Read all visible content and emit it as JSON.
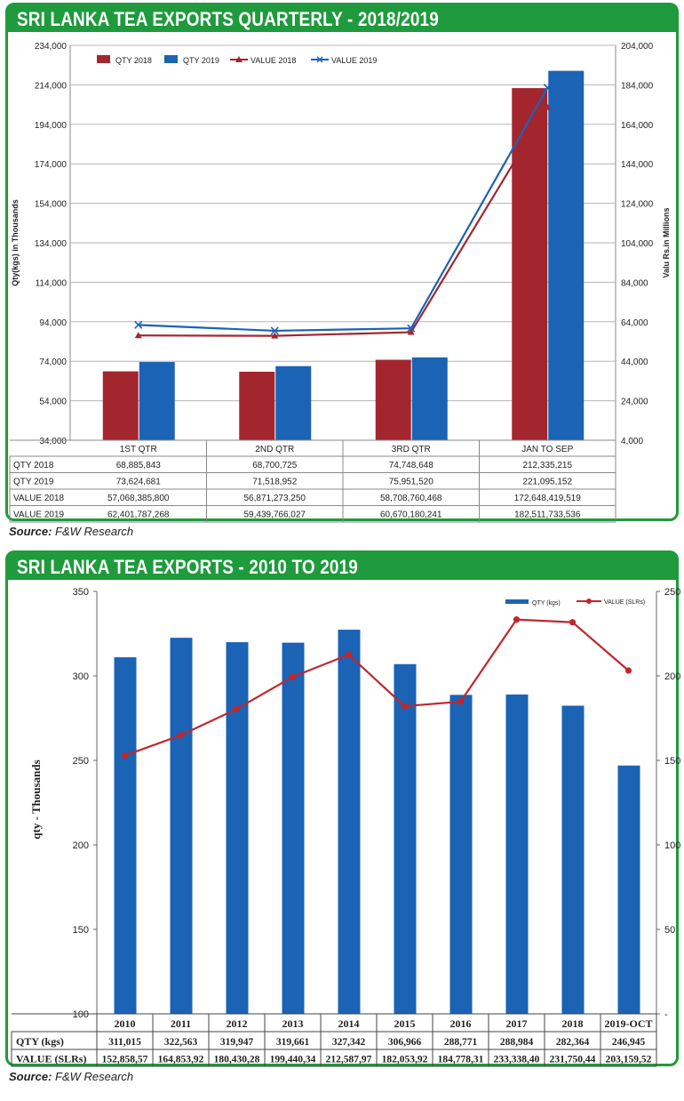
{
  "colors": {
    "red": "#a3262f",
    "blue": "#1b63b4",
    "green": "#1f9a3c"
  },
  "source": {
    "label": "Source:",
    "text": "F&W Research"
  },
  "chart_data": [
    {
      "type": "bar",
      "title": "SRI LANKA TEA EXPORTS QUARTERLY - 2018/2019",
      "categories": [
        "1ST QTR",
        "2ND QTR",
        "3RD QTR",
        "JAN TO SEP"
      ],
      "ylabel": "Qty(kgs) in Thousands",
      "y2label": "Valu Rs.in Millions",
      "ylim": [
        34000,
        234000
      ],
      "y2lim": [
        4000,
        204000
      ],
      "yticks": [
        "234,000",
        "214,000",
        "194,000",
        "174,000",
        "154,000",
        "134,000",
        "114,000",
        "94,000",
        "74,000",
        "54,000",
        "34,000"
      ],
      "y2ticks": [
        "204,000",
        "184,000",
        "164,000",
        "144,000",
        "124,000",
        "104,000",
        "84,000",
        "64,000",
        "44,000",
        "24,000",
        "4,000"
      ],
      "grid": true,
      "legend_position": "top-left",
      "series": [
        {
          "name": "QTY 2018",
          "kind": "bar",
          "axis": "left",
          "values": [
            68885.843,
            68700.725,
            74748.648,
            212335.215
          ]
        },
        {
          "name": "QTY 2019",
          "kind": "bar",
          "axis": "left",
          "values": [
            73624.681,
            71518.952,
            75951.52,
            221095.152
          ]
        },
        {
          "name": "VALUE 2018",
          "kind": "line",
          "axis": "right",
          "values": [
            57068.3858,
            56871.27325,
            58708.760468,
            172648.419519
          ]
        },
        {
          "name": "VALUE 2019",
          "kind": "line",
          "axis": "right",
          "values": [
            62401.787268,
            59439.766027,
            60670.180241,
            182511.733536
          ]
        }
      ],
      "table": {
        "rows": [
          {
            "label": "QTY 2018",
            "cells": [
              "68,885,843",
              "68,700,725",
              "74,748,648",
              "212,335,215"
            ]
          },
          {
            "label": "QTY 2019",
            "cells": [
              "73,624,681",
              "71,518,952",
              "75,951,520",
              "221,095,152"
            ]
          },
          {
            "label": "VALUE 2018",
            "cells": [
              "57,068,385,800",
              "56,871,273,250",
              "58,708,760,468",
              "172,648,419,519"
            ]
          },
          {
            "label": "VALUE 2019",
            "cells": [
              "62,401,787,268",
              "59,439,766,027",
              "60,670,180,241",
              "182,511,733,536"
            ]
          }
        ]
      }
    },
    {
      "type": "bar",
      "title": "SRI LANKA TEA EXPORTS - 2010 TO 2019",
      "categories": [
        "2010",
        "2011",
        "2012",
        "2013",
        "2014",
        "2015",
        "2016",
        "2017",
        "2018",
        "2019-OCT"
      ],
      "ylabel": "qty - Thousands",
      "ylim": [
        100,
        350
      ],
      "y2lim": [
        0,
        250
      ],
      "yticks": [
        "350",
        "300",
        "250",
        "200",
        "150",
        "100"
      ],
      "y2ticks": [
        "250",
        "200",
        "150",
        "100",
        "50",
        "-"
      ],
      "grid": false,
      "legend_position": "top-right",
      "series": [
        {
          "name": "QTY (kgs)",
          "kind": "bar",
          "axis": "left",
          "values": [
            311.015,
            322.563,
            319.947,
            319.661,
            327.342,
            306.966,
            288.771,
            288.984,
            282.364,
            246.945
          ]
        },
        {
          "name": "VALUE (SLRs)",
          "kind": "line",
          "axis": "right",
          "values": [
            152.858,
            164.854,
            180.43,
            199.44,
            212.588,
            182.054,
            184.778,
            233.338,
            231.75,
            203.16
          ]
        }
      ],
      "table": {
        "rows": [
          {
            "label": "QTY (kgs)",
            "cells": [
              "311,015",
              "322,563",
              "319,947",
              "319,661",
              "327,342",
              "306,966",
              "288,771",
              "288,984",
              "282,364",
              "246,945"
            ]
          },
          {
            "label": "VALUE (SLRs)",
            "cells": [
              "152,858,57",
              "164,853,92",
              "180,430,28",
              "199,440,34",
              "212,587,97",
              "182,053,92",
              "184,778,31",
              "233,338,40",
              "231,750,44",
              "203,159,52"
            ]
          }
        ]
      }
    }
  ]
}
